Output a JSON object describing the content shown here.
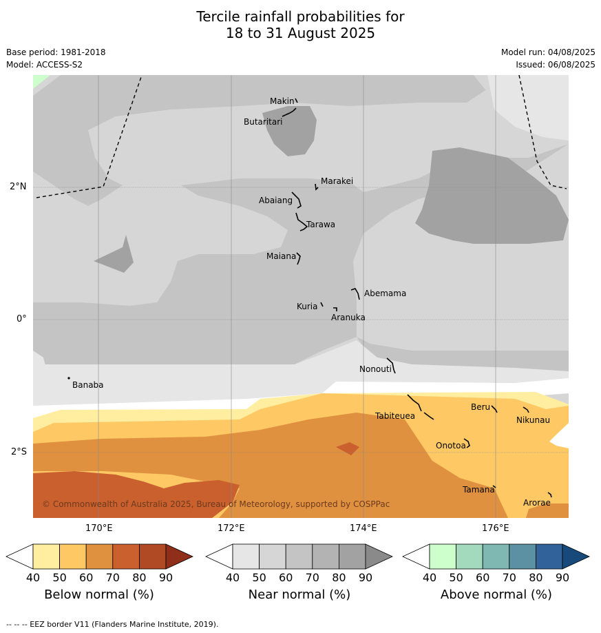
{
  "title_line1": "Tercile rainfall probabilities for",
  "title_line2": "18 to 31 August 2025",
  "meta": {
    "base_period": "Base period: 1981-2018",
    "model": "Model: ACCESS-S2",
    "model_run": "Model run: 04/08/2025",
    "issued": "Issued: 06/08/2025"
  },
  "axes": {
    "lon_ticks": [
      "170°E",
      "172°E",
      "174°E",
      "176°E"
    ],
    "lat_ticks": [
      "2°N",
      "0°",
      "2°S"
    ]
  },
  "places": [
    {
      "name": "Makin",
      "lon": 172.95,
      "lat": 3.25
    },
    {
      "name": "Butaritari",
      "lon": 172.85,
      "lat": 3.03
    },
    {
      "name": "Marakei",
      "lon": 173.3,
      "lat": 2.0
    },
    {
      "name": "Abaiang",
      "lon": 172.95,
      "lat": 1.82
    },
    {
      "name": "Tarawa",
      "lon": 172.98,
      "lat": 1.45
    },
    {
      "name": "Maiana",
      "lon": 173.0,
      "lat": 0.92
    },
    {
      "name": "Abemama",
      "lon": 173.85,
      "lat": 0.38
    },
    {
      "name": "Kuria",
      "lon": 173.4,
      "lat": 0.22
    },
    {
      "name": "Aranuka",
      "lon": 173.6,
      "lat": 0.15
    },
    {
      "name": "Nonouti",
      "lon": 174.42,
      "lat": -0.65
    },
    {
      "name": "Banaba",
      "lon": 169.55,
      "lat": -0.87
    },
    {
      "name": "Tabiteuea",
      "lon": 174.9,
      "lat": -1.4
    },
    {
      "name": "Beru",
      "lon": 176.0,
      "lat": -1.33
    },
    {
      "name": "Nikunau",
      "lon": 176.45,
      "lat": -1.38
    },
    {
      "name": "Onotoa",
      "lon": 175.55,
      "lat": -1.82
    },
    {
      "name": "Tamana",
      "lon": 175.98,
      "lat": -2.5
    },
    {
      "name": "Arorae",
      "lon": 176.82,
      "lat": -2.65
    }
  ],
  "credit": "© Commonwealth of Australia 2025, Bureau of Meteorology, supported by COSPPac",
  "colorbars": [
    {
      "label": "Below normal (%)",
      "ticks": [
        "40",
        "50",
        "60",
        "70",
        "80",
        "90"
      ],
      "colors": [
        "#ffffff",
        "#ffeda0",
        "#fec965",
        "#e09140",
        "#c9602e",
        "#b04a25",
        "#8f2f1a"
      ]
    },
    {
      "label": "Near normal (%)",
      "ticks": [
        "40",
        "50",
        "60",
        "70",
        "80",
        "90"
      ],
      "colors": [
        "#ffffff",
        "#e6e6e6",
        "#d6d6d6",
        "#c4c4c4",
        "#b3b3b3",
        "#a2a2a2",
        "#8a8a8a"
      ]
    },
    {
      "label": "Above normal (%)",
      "ticks": [
        "40",
        "50",
        "60",
        "70",
        "80",
        "90"
      ],
      "colors": [
        "#ffffff",
        "#ccffcc",
        "#a3d9bc",
        "#7fb8b3",
        "#5b91a3",
        "#31639a",
        "#174a7a"
      ]
    }
  ],
  "footnote": "--  --  -- EEZ border V11 (Flanders Marine Institute, 2019)."
}
